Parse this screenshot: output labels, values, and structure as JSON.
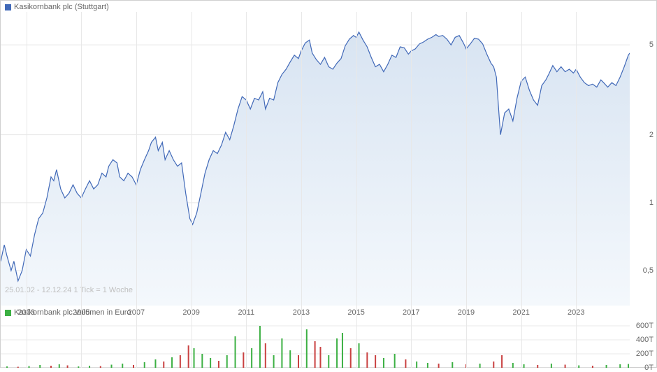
{
  "price_chart": {
    "type": "line-area",
    "title": "Kasikornbank plc (Stuttgart)",
    "legend_box_color": "#4169b8",
    "line_color": "#4169b8",
    "area_gradient_top": "#d8e4f2",
    "area_gradient_bottom": "#f4f8fc",
    "background_color": "#ffffff",
    "grid_color": "#e8e8e8",
    "text_color": "#666666",
    "date_range_text": "25.01.02 - 12.12.24   1 Tick = 1 Woche",
    "date_range_color": "#c0c0c0",
    "y_scale": "log",
    "y_ticks": [
      0.5,
      1,
      2,
      5
    ],
    "y_tick_labels": [
      "0,5",
      "1",
      "2",
      "5"
    ],
    "ylim": [
      0.35,
      7
    ],
    "x_ticks_years": [
      2003,
      2005,
      2007,
      2009,
      2011,
      2013,
      2015,
      2017,
      2019,
      2021,
      2023
    ],
    "xlim": [
      2002.07,
      2024.95
    ],
    "series": [
      [
        2002.07,
        0.55
      ],
      [
        2002.2,
        0.65
      ],
      [
        2002.3,
        0.58
      ],
      [
        2002.45,
        0.5
      ],
      [
        2002.55,
        0.55
      ],
      [
        2002.7,
        0.45
      ],
      [
        2002.85,
        0.5
      ],
      [
        2003.0,
        0.62
      ],
      [
        2003.15,
        0.58
      ],
      [
        2003.3,
        0.72
      ],
      [
        2003.45,
        0.85
      ],
      [
        2003.6,
        0.9
      ],
      [
        2003.75,
        1.05
      ],
      [
        2003.9,
        1.3
      ],
      [
        2004.0,
        1.25
      ],
      [
        2004.1,
        1.4
      ],
      [
        2004.25,
        1.15
      ],
      [
        2004.4,
        1.05
      ],
      [
        2004.55,
        1.1
      ],
      [
        2004.7,
        1.2
      ],
      [
        2004.85,
        1.1
      ],
      [
        2005.0,
        1.05
      ],
      [
        2005.15,
        1.15
      ],
      [
        2005.3,
        1.25
      ],
      [
        2005.45,
        1.15
      ],
      [
        2005.6,
        1.2
      ],
      [
        2005.75,
        1.35
      ],
      [
        2005.9,
        1.3
      ],
      [
        2006.0,
        1.45
      ],
      [
        2006.15,
        1.55
      ],
      [
        2006.3,
        1.5
      ],
      [
        2006.4,
        1.3
      ],
      [
        2006.55,
        1.25
      ],
      [
        2006.7,
        1.35
      ],
      [
        2006.85,
        1.3
      ],
      [
        2007.0,
        1.2
      ],
      [
        2007.15,
        1.4
      ],
      [
        2007.3,
        1.55
      ],
      [
        2007.45,
        1.7
      ],
      [
        2007.55,
        1.85
      ],
      [
        2007.7,
        1.95
      ],
      [
        2007.8,
        1.7
      ],
      [
        2007.95,
        1.85
      ],
      [
        2008.05,
        1.55
      ],
      [
        2008.2,
        1.7
      ],
      [
        2008.35,
        1.55
      ],
      [
        2008.5,
        1.45
      ],
      [
        2008.65,
        1.5
      ],
      [
        2008.8,
        1.1
      ],
      [
        2008.95,
        0.85
      ],
      [
        2009.05,
        0.8
      ],
      [
        2009.2,
        0.9
      ],
      [
        2009.35,
        1.1
      ],
      [
        2009.5,
        1.35
      ],
      [
        2009.65,
        1.55
      ],
      [
        2009.8,
        1.7
      ],
      [
        2009.95,
        1.65
      ],
      [
        2010.1,
        1.8
      ],
      [
        2010.25,
        2.05
      ],
      [
        2010.4,
        1.9
      ],
      [
        2010.55,
        2.2
      ],
      [
        2010.7,
        2.6
      ],
      [
        2010.85,
        2.95
      ],
      [
        2011.0,
        2.85
      ],
      [
        2011.15,
        2.6
      ],
      [
        2011.3,
        2.9
      ],
      [
        2011.45,
        2.85
      ],
      [
        2011.6,
        3.1
      ],
      [
        2011.7,
        2.6
      ],
      [
        2011.85,
        2.9
      ],
      [
        2012.0,
        2.85
      ],
      [
        2012.15,
        3.4
      ],
      [
        2012.3,
        3.7
      ],
      [
        2012.45,
        3.9
      ],
      [
        2012.6,
        4.2
      ],
      [
        2012.75,
        4.5
      ],
      [
        2012.9,
        4.35
      ],
      [
        2013.0,
        4.7
      ],
      [
        2013.15,
        5.1
      ],
      [
        2013.3,
        5.25
      ],
      [
        2013.4,
        4.6
      ],
      [
        2013.55,
        4.3
      ],
      [
        2013.7,
        4.1
      ],
      [
        2013.85,
        4.4
      ],
      [
        2014.0,
        4.0
      ],
      [
        2014.15,
        3.9
      ],
      [
        2014.3,
        4.15
      ],
      [
        2014.45,
        4.35
      ],
      [
        2014.6,
        4.95
      ],
      [
        2014.75,
        5.3
      ],
      [
        2014.9,
        5.5
      ],
      [
        2015.0,
        5.4
      ],
      [
        2015.1,
        5.7
      ],
      [
        2015.25,
        5.25
      ],
      [
        2015.4,
        4.9
      ],
      [
        2015.55,
        4.4
      ],
      [
        2015.7,
        4.0
      ],
      [
        2015.85,
        4.1
      ],
      [
        2016.0,
        3.8
      ],
      [
        2016.15,
        4.1
      ],
      [
        2016.3,
        4.5
      ],
      [
        2016.45,
        4.4
      ],
      [
        2016.6,
        4.9
      ],
      [
        2016.75,
        4.85
      ],
      [
        2016.9,
        4.55
      ],
      [
        2017.0,
        4.7
      ],
      [
        2017.15,
        4.8
      ],
      [
        2017.3,
        5.05
      ],
      [
        2017.45,
        5.15
      ],
      [
        2017.6,
        5.3
      ],
      [
        2017.75,
        5.4
      ],
      [
        2017.9,
        5.55
      ],
      [
        2018.0,
        5.45
      ],
      [
        2018.15,
        5.5
      ],
      [
        2018.3,
        5.3
      ],
      [
        2018.45,
        5.0
      ],
      [
        2018.6,
        5.4
      ],
      [
        2018.75,
        5.5
      ],
      [
        2018.9,
        5.1
      ],
      [
        2019.0,
        4.8
      ],
      [
        2019.15,
        5.05
      ],
      [
        2019.3,
        5.35
      ],
      [
        2019.45,
        5.3
      ],
      [
        2019.6,
        5.05
      ],
      [
        2019.75,
        4.55
      ],
      [
        2019.9,
        4.15
      ],
      [
        2020.0,
        4.0
      ],
      [
        2020.1,
        3.6
      ],
      [
        2020.2,
        2.4
      ],
      [
        2020.25,
        2.0
      ],
      [
        2020.4,
        2.5
      ],
      [
        2020.55,
        2.6
      ],
      [
        2020.7,
        2.3
      ],
      [
        2020.85,
        2.9
      ],
      [
        2021.0,
        3.45
      ],
      [
        2021.15,
        3.6
      ],
      [
        2021.3,
        3.15
      ],
      [
        2021.45,
        2.85
      ],
      [
        2021.6,
        2.7
      ],
      [
        2021.75,
        3.3
      ],
      [
        2021.9,
        3.5
      ],
      [
        2022.0,
        3.7
      ],
      [
        2022.15,
        4.05
      ],
      [
        2022.3,
        3.8
      ],
      [
        2022.45,
        4.0
      ],
      [
        2022.6,
        3.8
      ],
      [
        2022.75,
        3.9
      ],
      [
        2022.9,
        3.75
      ],
      [
        2023.0,
        3.9
      ],
      [
        2023.15,
        3.6
      ],
      [
        2023.3,
        3.4
      ],
      [
        2023.45,
        3.3
      ],
      [
        2023.6,
        3.35
      ],
      [
        2023.75,
        3.25
      ],
      [
        2023.9,
        3.5
      ],
      [
        2024.0,
        3.4
      ],
      [
        2024.15,
        3.25
      ],
      [
        2024.3,
        3.4
      ],
      [
        2024.45,
        3.3
      ],
      [
        2024.6,
        3.6
      ],
      [
        2024.75,
        4.0
      ],
      [
        2024.9,
        4.5
      ],
      [
        2024.95,
        4.6
      ]
    ]
  },
  "volume_chart": {
    "type": "bar",
    "title": "Kasikornbank plc Volumen in Euro",
    "legend_box_color": "#3cb043",
    "up_color": "#3cb043",
    "down_color": "#c94040",
    "grid_color": "#e8e8e8",
    "ylim": [
      0,
      700
    ],
    "y_ticks": [
      0,
      200,
      400,
      600
    ],
    "y_tick_labels": [
      "0T",
      "200T",
      "400T",
      "600T"
    ],
    "bars": [
      [
        2002.3,
        20,
        "u"
      ],
      [
        2002.7,
        15,
        "d"
      ],
      [
        2003.1,
        25,
        "u"
      ],
      [
        2003.5,
        40,
        "u"
      ],
      [
        2003.9,
        30,
        "d"
      ],
      [
        2004.2,
        50,
        "u"
      ],
      [
        2004.5,
        35,
        "d"
      ],
      [
        2004.9,
        20,
        "u"
      ],
      [
        2005.3,
        30,
        "u"
      ],
      [
        2005.7,
        25,
        "d"
      ],
      [
        2006.1,
        45,
        "u"
      ],
      [
        2006.5,
        60,
        "u"
      ],
      [
        2006.9,
        40,
        "d"
      ],
      [
        2007.3,
        80,
        "u"
      ],
      [
        2007.7,
        120,
        "u"
      ],
      [
        2008.0,
        90,
        "d"
      ],
      [
        2008.3,
        150,
        "u"
      ],
      [
        2008.6,
        180,
        "d"
      ],
      [
        2008.9,
        320,
        "d"
      ],
      [
        2009.1,
        280,
        "u"
      ],
      [
        2009.4,
        200,
        "u"
      ],
      [
        2009.7,
        140,
        "u"
      ],
      [
        2010.0,
        100,
        "d"
      ],
      [
        2010.3,
        180,
        "u"
      ],
      [
        2010.6,
        450,
        "u"
      ],
      [
        2010.9,
        220,
        "d"
      ],
      [
        2011.2,
        280,
        "u"
      ],
      [
        2011.5,
        600,
        "u"
      ],
      [
        2011.7,
        350,
        "d"
      ],
      [
        2012.0,
        180,
        "u"
      ],
      [
        2012.3,
        420,
        "u"
      ],
      [
        2012.6,
        250,
        "u"
      ],
      [
        2012.9,
        180,
        "d"
      ],
      [
        2013.2,
        550,
        "u"
      ],
      [
        2013.5,
        380,
        "d"
      ],
      [
        2013.7,
        300,
        "d"
      ],
      [
        2014.0,
        180,
        "u"
      ],
      [
        2014.3,
        420,
        "u"
      ],
      [
        2014.5,
        500,
        "u"
      ],
      [
        2014.8,
        280,
        "d"
      ],
      [
        2015.1,
        350,
        "u"
      ],
      [
        2015.4,
        220,
        "d"
      ],
      [
        2015.7,
        180,
        "d"
      ],
      [
        2016.0,
        140,
        "u"
      ],
      [
        2016.4,
        200,
        "u"
      ],
      [
        2016.8,
        120,
        "d"
      ],
      [
        2017.2,
        90,
        "u"
      ],
      [
        2017.6,
        70,
        "u"
      ],
      [
        2018.0,
        60,
        "d"
      ],
      [
        2018.5,
        80,
        "u"
      ],
      [
        2019.0,
        50,
        "d"
      ],
      [
        2019.5,
        60,
        "u"
      ],
      [
        2020.0,
        90,
        "d"
      ],
      [
        2020.3,
        180,
        "d"
      ],
      [
        2020.7,
        70,
        "u"
      ],
      [
        2021.1,
        50,
        "u"
      ],
      [
        2021.6,
        40,
        "d"
      ],
      [
        2022.1,
        60,
        "u"
      ],
      [
        2022.6,
        45,
        "d"
      ],
      [
        2023.1,
        35,
        "u"
      ],
      [
        2023.6,
        30,
        "d"
      ],
      [
        2024.1,
        40,
        "u"
      ],
      [
        2024.6,
        50,
        "u"
      ],
      [
        2024.9,
        55,
        "u"
      ]
    ]
  }
}
